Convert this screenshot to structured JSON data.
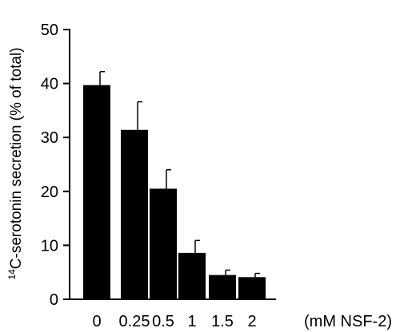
{
  "chart_data": {
    "type": "bar",
    "categories": [
      "0",
      "0.25",
      "0.5",
      "1",
      "1.5",
      "2"
    ],
    "values": [
      39.7,
      31.4,
      20.5,
      8.6,
      4.5,
      4.1
    ],
    "errors": [
      2.5,
      5.2,
      3.5,
      2.3,
      0.9,
      0.7
    ],
    "ylim": [
      0,
      50
    ],
    "yticks": [
      0,
      10,
      20,
      30,
      40,
      50
    ],
    "ylabel_sup": "14",
    "ylabel": "C-serotonin secretion (% of total)",
    "xlabel": "(mM NSF-2)",
    "grid": false,
    "bar_color": "#000000",
    "axis_color": "#000000"
  }
}
